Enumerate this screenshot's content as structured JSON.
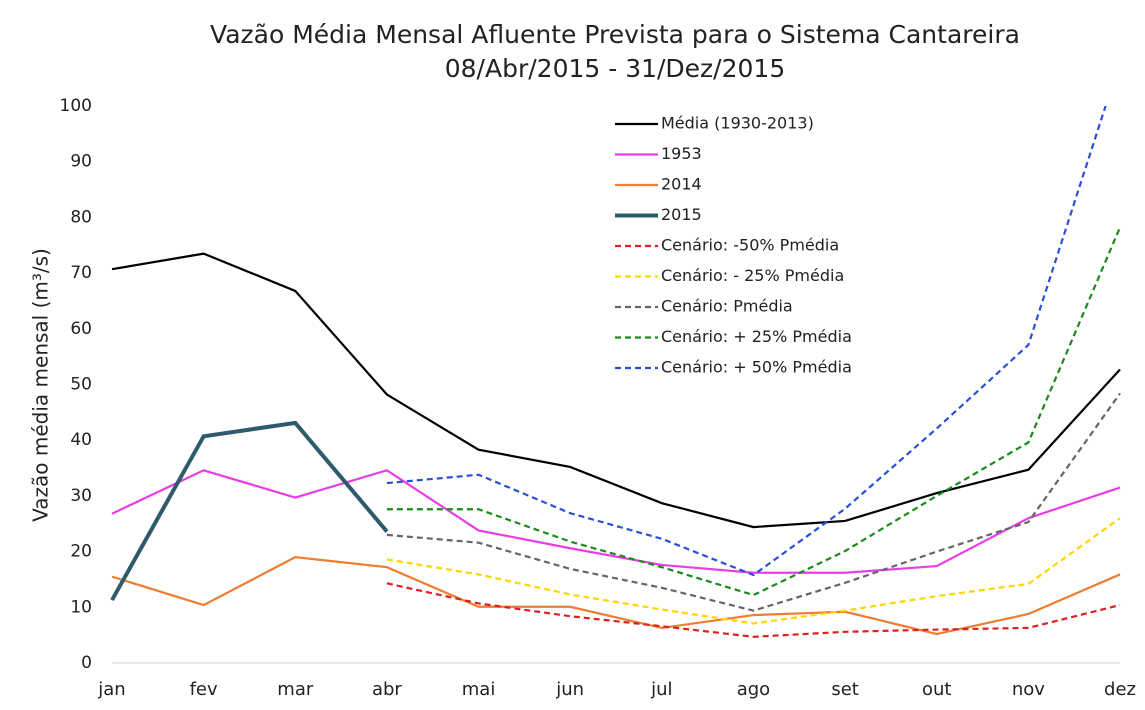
{
  "chart_data": {
    "type": "line",
    "title": "Vazão Média Mensal Afluente Prevista para o Sistema Cantareira",
    "subtitle": "08/Abr/2015 - 31/Dez/2015",
    "y_label": "Vazão média mensal (m³/s)",
    "categories": [
      "jan",
      "fev",
      "mar",
      "abr",
      "mai",
      "jun",
      "jul",
      "ago",
      "set",
      "out",
      "nov",
      "dez"
    ],
    "ylim": [
      0,
      100
    ],
    "yticks": [
      0,
      10,
      20,
      30,
      40,
      50,
      60,
      70,
      80,
      90,
      100
    ],
    "grid": false,
    "series": [
      {
        "name": "Média (1930-2013)",
        "color": "#000000",
        "dashed": false,
        "values": [
          70.7,
          73.5,
          66.8,
          48.2,
          38.3,
          35.2,
          28.7,
          24.4,
          25.5,
          30.5,
          34.7,
          52.7
        ]
      },
      {
        "name": "1953",
        "color": "#e83ee8",
        "dashed": false,
        "values": [
          26.8,
          34.6,
          29.7,
          34.6,
          23.8,
          20.6,
          17.6,
          16.2,
          16.2,
          17.4,
          26.0,
          31.5
        ]
      },
      {
        "name": "2014",
        "color": "#ed7d31",
        "dashed": false,
        "values": [
          15.5,
          10.4,
          19.0,
          17.2,
          10.1,
          10.1,
          6.3,
          8.6,
          9.2,
          5.2,
          8.8,
          15.9
        ]
      },
      {
        "name": "2015",
        "color": "#2e5b6c",
        "dashed": false,
        "bold": true,
        "values": [
          11.3,
          40.7,
          43.1,
          23.6,
          null,
          null,
          null,
          null,
          null,
          null,
          null,
          null
        ]
      },
      {
        "name": "Cenário: -50% Pmédia",
        "color": "#e02020",
        "dashed": true,
        "values": [
          null,
          null,
          null,
          14.3,
          10.7,
          8.4,
          6.6,
          4.7,
          5.6,
          6.0,
          6.3,
          10.4
        ]
      },
      {
        "name": "Cenário: - 25% Pmédia",
        "color": "#ffd700",
        "dashed": true,
        "values": [
          null,
          null,
          null,
          18.6,
          15.9,
          12.3,
          9.6,
          7.1,
          9.4,
          12.0,
          14.2,
          26.0
        ]
      },
      {
        "name": "Cenário: Pmédia",
        "color": "#666666",
        "dashed": true,
        "values": [
          null,
          null,
          null,
          23.0,
          21.6,
          16.9,
          13.5,
          9.4,
          14.4,
          20.0,
          25.3,
          48.4
        ]
      },
      {
        "name": "Cenário: + 25% Pmédia",
        "color": "#1a8a1a",
        "dashed": true,
        "values": [
          null,
          null,
          null,
          27.6,
          27.6,
          21.8,
          17.2,
          12.2,
          20.1,
          30.0,
          39.6,
          78.2
        ]
      },
      {
        "name": "Cenário: + 50% Pmédia",
        "color": "#2850d8",
        "dashed": true,
        "values": [
          null,
          null,
          null,
          32.3,
          33.8,
          26.9,
          22.3,
          15.8,
          27.7,
          42.1,
          57.1,
          108
        ]
      }
    ]
  }
}
